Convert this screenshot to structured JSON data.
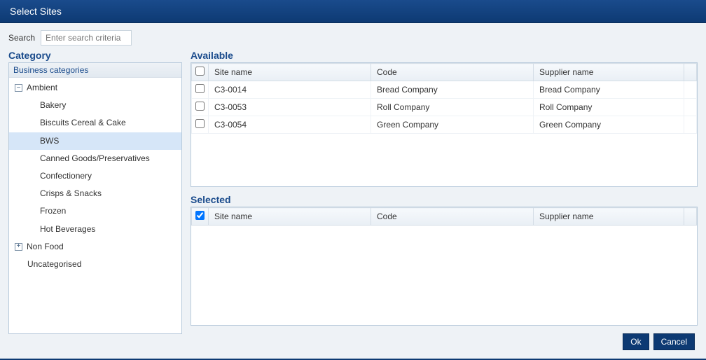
{
  "dialog": {
    "title": "Select Sites"
  },
  "search": {
    "label": "Search",
    "placeholder": "Enter search criteria",
    "value": ""
  },
  "category": {
    "heading": "Category",
    "header": "Business categories",
    "nodes": [
      {
        "label": "Ambient",
        "expanded": true,
        "children": [
          {
            "label": "Bakery",
            "selected": false
          },
          {
            "label": "Biscuits Cereal & Cake",
            "selected": false
          },
          {
            "label": "BWS",
            "selected": true
          },
          {
            "label": "Canned Goods/Preservatives",
            "selected": false
          },
          {
            "label": "Confectionery",
            "selected": false
          },
          {
            "label": "Crisps & Snacks",
            "selected": false
          },
          {
            "label": "Frozen",
            "selected": false
          },
          {
            "label": "Hot Beverages",
            "selected": false
          }
        ]
      },
      {
        "label": "Non Food",
        "expanded": false,
        "children": []
      },
      {
        "label": "Uncategorised",
        "leaf": true
      }
    ]
  },
  "available": {
    "heading": "Available",
    "columns": {
      "site": "Site name",
      "code": "Code",
      "supplier": "Supplier name"
    },
    "select_all": false,
    "rows": [
      {
        "checked": false,
        "site": "C3-0014",
        "code": "Bread Company",
        "supplier": "Bread Company"
      },
      {
        "checked": false,
        "site": "C3-0053",
        "code": "Roll Company",
        "supplier": "Roll Company"
      },
      {
        "checked": false,
        "site": "C3-0054",
        "code": "Green Company",
        "supplier": "Green Company"
      }
    ]
  },
  "selected": {
    "heading": "Selected",
    "columns": {
      "site": "Site name",
      "code": "Code",
      "supplier": "Supplier name"
    },
    "select_all": true,
    "rows": []
  },
  "buttons": {
    "ok": "Ok",
    "cancel": "Cancel"
  },
  "colors": {
    "titlebar_top": "#1a4b8c",
    "titlebar_bottom": "#0d3a73",
    "accent": "#1a4b8c",
    "panel_border": "#b9cbdc",
    "row_selected": "#d6e6f8",
    "page_bg": "#eef2f6"
  }
}
